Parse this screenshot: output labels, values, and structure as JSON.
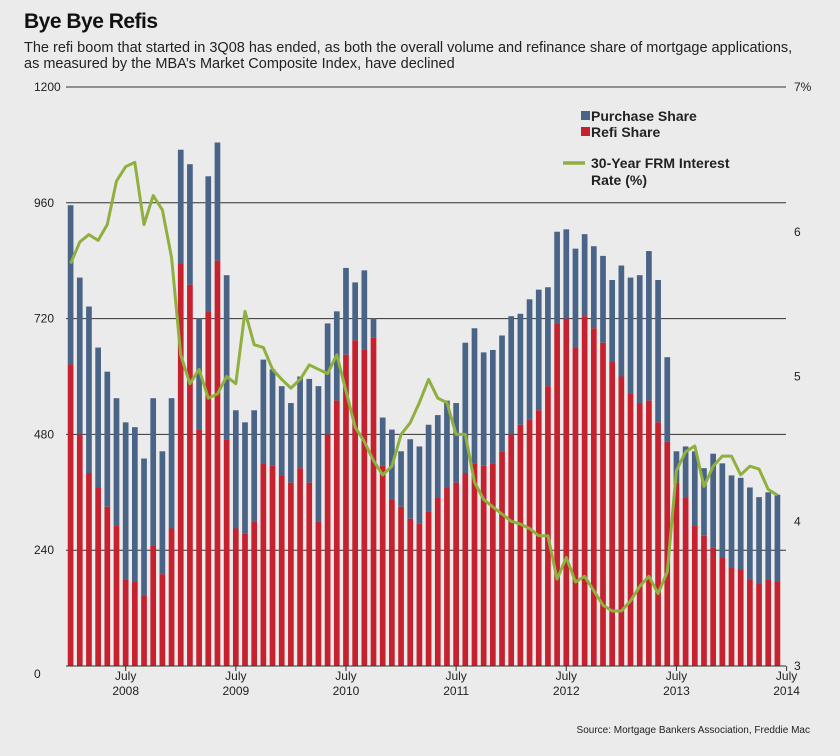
{
  "title": "Bye Bye Refis",
  "subtitle": "The refi boom that started in 3Q08 has ended, as both the overall volume and refinance share of mortgage applications, as measured by the MBA’s Market Composite Index, have declined",
  "source": "Source: Mortgage Bankers Association, Freddie Mac",
  "colors": {
    "purchase": "#4a6487",
    "refi": "#c5212e",
    "rate": "#8fb03e",
    "background": "#ebebeb"
  },
  "chart_data": {
    "type": "bar",
    "stacked": true,
    "title": "Bye Bye Refis",
    "left_axis": {
      "ylim": [
        0,
        1200
      ],
      "ticks": [
        "0",
        "240",
        "480",
        "720",
        "960",
        "1200"
      ]
    },
    "right_axis": {
      "ylim": [
        3,
        7
      ],
      "ticks": [
        "3",
        "4",
        "5",
        "6",
        "7%"
      ]
    },
    "x_tick_labels": [
      {
        "month": "July",
        "year": "2008",
        "index": 6
      },
      {
        "month": "July",
        "year": "2009",
        "index": 18
      },
      {
        "month": "July",
        "year": "2010",
        "index": 30
      },
      {
        "month": "July",
        "year": "2011",
        "index": 42
      },
      {
        "month": "July",
        "year": "2012",
        "index": 54
      },
      {
        "month": "July",
        "year": "2013",
        "index": 66
      },
      {
        "month": "July",
        "year": "2014",
        "index": 78
      }
    ],
    "legend": [
      "Purchase Share",
      "Refi Share",
      "30-Year FRM Interest Rate (%)"
    ],
    "legend_position": "top-right",
    "series": [
      {
        "name": "Purchase Share",
        "axis": "left"
      },
      {
        "name": "Refi Share",
        "axis": "left"
      },
      {
        "name": "30-Year FRM Interest Rate (%)",
        "axis": "right",
        "type": "line"
      }
    ],
    "totals": [
      955,
      805,
      745,
      660,
      610,
      555,
      505,
      495,
      430,
      555,
      445,
      555,
      1070,
      1040,
      720,
      1015,
      1085,
      810,
      530,
      505,
      530,
      635,
      615,
      580,
      545,
      600,
      595,
      580,
      710,
      735,
      825,
      795,
      820,
      720,
      515,
      490,
      445,
      470,
      455,
      500,
      520,
      550,
      545,
      670,
      700,
      650,
      655,
      685,
      725,
      730,
      760,
      780,
      785,
      900,
      905,
      865,
      895,
      870,
      850,
      800,
      830,
      805,
      810,
      860,
      800,
      640,
      445,
      455,
      445,
      410,
      440,
      420,
      395,
      390,
      370,
      350,
      360,
      355
    ],
    "refi": [
      625,
      480,
      400,
      370,
      330,
      290,
      180,
      175,
      145,
      250,
      190,
      285,
      835,
      790,
      490,
      735,
      840,
      470,
      285,
      275,
      300,
      420,
      415,
      395,
      380,
      410,
      380,
      300,
      480,
      550,
      645,
      675,
      655,
      680,
      415,
      345,
      330,
      305,
      295,
      320,
      350,
      370,
      380,
      400,
      420,
      415,
      420,
      445,
      480,
      500,
      510,
      530,
      580,
      710,
      720,
      660,
      725,
      700,
      670,
      630,
      600,
      565,
      545,
      550,
      505,
      465,
      380,
      350,
      290,
      270,
      245,
      225,
      205,
      200,
      180,
      170,
      180,
      175
    ],
    "rate": [
      5.78,
      5.93,
      5.98,
      5.94,
      6.05,
      6.35,
      6.45,
      6.48,
      6.05,
      6.25,
      6.15,
      5.82,
      5.15,
      4.95,
      5.05,
      4.85,
      4.88,
      5.0,
      4.95,
      5.45,
      5.22,
      5.2,
      5.05,
      4.98,
      4.92,
      4.98,
      5.08,
      5.05,
      5.02,
      5.15,
      4.9,
      4.65,
      4.55,
      4.42,
      4.32,
      4.38,
      4.6,
      4.68,
      4.82,
      4.98,
      4.85,
      4.82,
      4.6,
      4.6,
      4.27,
      4.15,
      4.1,
      4.05,
      4.0,
      3.98,
      3.95,
      3.9,
      3.9,
      3.6,
      3.75,
      3.58,
      3.62,
      3.52,
      3.42,
      3.38,
      3.38,
      3.45,
      3.55,
      3.62,
      3.5,
      3.65,
      4.35,
      4.48,
      4.52,
      4.24,
      4.38,
      4.45,
      4.45,
      4.32,
      4.38,
      4.36,
      4.22,
      4.18
    ]
  }
}
